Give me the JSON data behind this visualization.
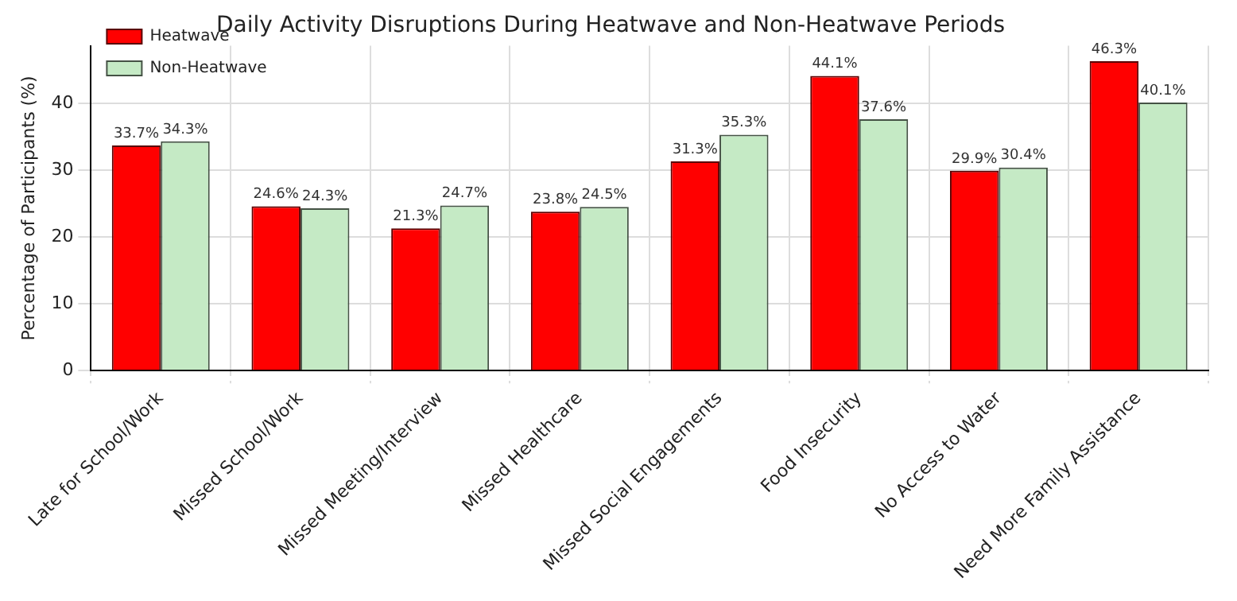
{
  "chart_data": {
    "type": "bar",
    "title": "Daily Activity Disruptions During Heatwave and Non-Heatwave Periods",
    "ylabel": "Percentage of Participants (%)",
    "categories": [
      "Late for School/Work",
      "Missed School/Work",
      "Missed Meeting/Interview",
      "Missed Healthcare",
      "Missed Social Engagements",
      "Food Insecurity",
      "No Access to Water",
      "Need More Family Assistance"
    ],
    "series": [
      {
        "name": "Heatwave",
        "color": "#ff0000",
        "values": [
          33.7,
          24.6,
          21.3,
          23.8,
          31.3,
          44.1,
          29.9,
          46.3
        ],
        "value_labels": [
          "33.7%",
          "24.6%",
          "21.3%",
          "23.8%",
          "31.3%",
          "44.1%",
          "29.9%",
          "46.3%"
        ]
      },
      {
        "name": "Non-Heatwave",
        "color": "#c5eac5",
        "values": [
          34.3,
          24.3,
          24.7,
          24.5,
          35.3,
          37.6,
          30.4,
          40.1
        ],
        "value_labels": [
          "34.3%",
          "24.3%",
          "24.7%",
          "24.5%",
          "35.3%",
          "37.6%",
          "30.4%",
          "40.1%"
        ]
      }
    ],
    "ylim": [
      0,
      48.6
    ],
    "yticks": [
      0,
      10,
      20,
      30,
      40
    ],
    "grid": true,
    "legend": "top left"
  }
}
